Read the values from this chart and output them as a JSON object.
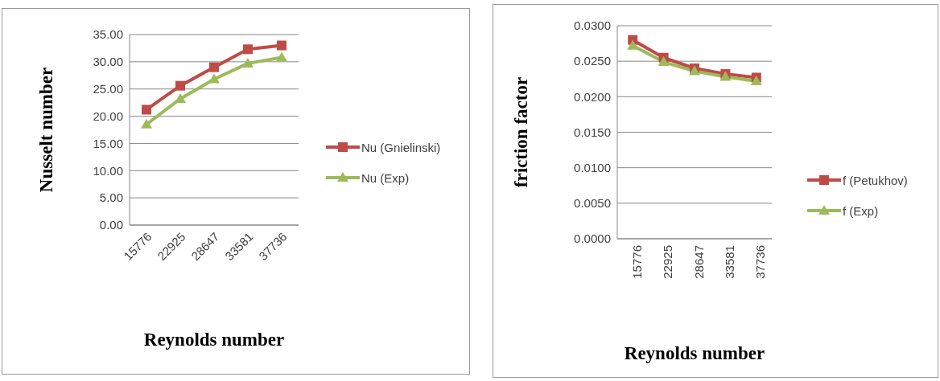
{
  "chart_data": [
    {
      "type": "line",
      "ylabel": "Nusselt number",
      "xlabel": "Reynolds number",
      "categories": [
        "15776",
        "22925",
        "28647",
        "33581",
        "37736"
      ],
      "series": [
        {
          "name": "Nu (Gnielinski)",
          "color": "#be4b48",
          "marker": "square",
          "values": [
            21.2,
            25.6,
            29.0,
            32.3,
            33.0
          ]
        },
        {
          "name": "Nu (Exp)",
          "color": "#9bbb59",
          "marker": "triangle",
          "values": [
            18.5,
            23.2,
            26.8,
            29.7,
            30.8
          ]
        }
      ],
      "ylim": [
        0,
        35
      ],
      "yticks": [
        {
          "value": 0,
          "label": "0.00"
        },
        {
          "value": 5,
          "label": "5.00"
        },
        {
          "value": 10,
          "label": "10.00"
        },
        {
          "value": 15,
          "label": "15.00"
        },
        {
          "value": 20,
          "label": "20.00"
        },
        {
          "value": 25,
          "label": "25.00"
        },
        {
          "value": 30,
          "label": "30.00"
        },
        {
          "value": 35,
          "label": "35.00"
        }
      ],
      "grid": "y",
      "legend": "right"
    },
    {
      "type": "line",
      "ylabel": "friction factor",
      "xlabel": "Reynolds number",
      "categories": [
        "15776",
        "22925",
        "28647",
        "33581",
        "37736"
      ],
      "series": [
        {
          "name": "f (Petukhov)",
          "color": "#be4b48",
          "marker": "square",
          "values": [
            0.028,
            0.0255,
            0.024,
            0.0232,
            0.0227
          ]
        },
        {
          "name": "f (Exp)",
          "color": "#9bbb59",
          "marker": "triangle",
          "values": [
            0.0272,
            0.0249,
            0.0236,
            0.0228,
            0.0222
          ]
        }
      ],
      "ylim": [
        0,
        0.03
      ],
      "yticks": [
        {
          "value": 0,
          "label": "0.0000"
        },
        {
          "value": 0.005,
          "label": "0.0050"
        },
        {
          "value": 0.01,
          "label": "0.0100"
        },
        {
          "value": 0.015,
          "label": "0.0150"
        },
        {
          "value": 0.02,
          "label": "0.0200"
        },
        {
          "value": 0.025,
          "label": "0.0250"
        },
        {
          "value": 0.03,
          "label": "0.0300"
        }
      ],
      "grid": "y",
      "legend": "right"
    }
  ]
}
